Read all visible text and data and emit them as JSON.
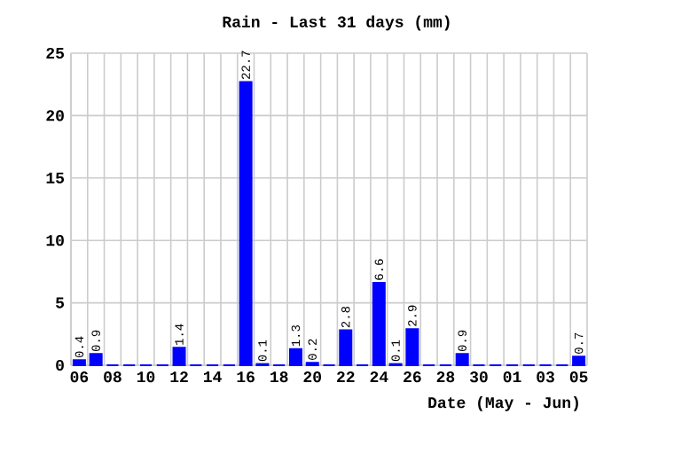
{
  "chart_data": {
    "type": "bar",
    "title": "Rain - Last 31 days (mm)",
    "xlabel": "Date (May - Jun)",
    "categories": [
      "06",
      null,
      "08",
      null,
      "10",
      null,
      "12",
      null,
      "14",
      null,
      "16",
      null,
      "18",
      null,
      "20",
      null,
      "22",
      null,
      "24",
      null,
      "26",
      null,
      "28",
      null,
      "30",
      null,
      "01",
      null,
      "03",
      null,
      "05"
    ],
    "values": [
      0.4,
      0.9,
      0,
      0,
      0,
      0,
      1.4,
      0,
      0,
      0,
      22.7,
      0.1,
      0,
      1.3,
      0.2,
      0,
      2.8,
      0,
      6.6,
      0.1,
      2.9,
      0,
      0,
      0.9,
      0,
      0,
      0,
      0,
      0,
      0,
      0.7
    ],
    "value_labels": [
      "0.4",
      "0.9",
      null,
      null,
      null,
      null,
      "1.4",
      null,
      null,
      null,
      "22.7",
      "0.1",
      null,
      "1.3",
      "0.2",
      null,
      "2.8",
      null,
      "6.6",
      "0.1",
      "2.9",
      null,
      null,
      "0.9",
      null,
      null,
      null,
      null,
      null,
      null,
      "0.7"
    ],
    "color": "#0000ff",
    "ylim": [
      0,
      25
    ],
    "yticks": [
      0,
      5,
      10,
      15,
      20,
      25
    ],
    "grid": true
  }
}
